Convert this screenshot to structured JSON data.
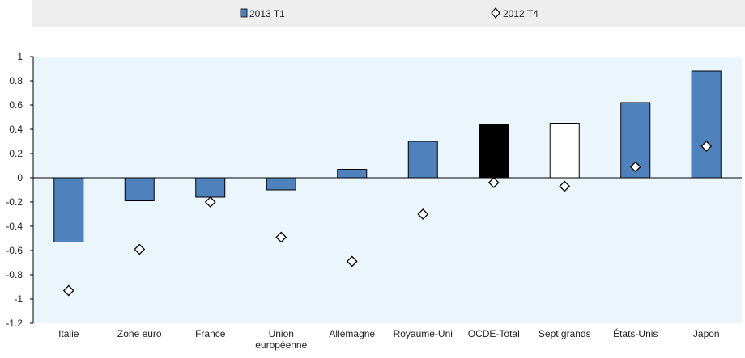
{
  "chart_data": {
    "type": "bar",
    "categories": [
      [
        "Italie"
      ],
      [
        "Zone euro"
      ],
      [
        "France"
      ],
      [
        "Union",
        "européenne"
      ],
      [
        "Allemagne"
      ],
      [
        "Royaume-Uni"
      ],
      [
        "OCDE-Total"
      ],
      [
        "Sept grands"
      ],
      [
        "États-Unis"
      ],
      [
        "Japon"
      ]
    ],
    "series": [
      {
        "name": "2013 T1",
        "kind": "bar",
        "values": [
          -0.53,
          -0.19,
          -0.16,
          -0.1,
          0.07,
          0.3,
          0.44,
          0.45,
          0.62,
          0.88
        ],
        "bar_colors": [
          "#4f81bd",
          "#4f81bd",
          "#4f81bd",
          "#4f81bd",
          "#4f81bd",
          "#4f81bd",
          "#000000",
          "#ffffff",
          "#4f81bd",
          "#4f81bd"
        ]
      },
      {
        "name": "2012 T4",
        "kind": "marker",
        "marker": "diamond",
        "values": [
          -0.93,
          -0.59,
          -0.2,
          -0.49,
          -0.69,
          -0.3,
          -0.04,
          -0.07,
          0.09,
          0.26
        ]
      }
    ],
    "ylim": [
      -1.2,
      1
    ],
    "yticks": [
      "1",
      "0.8",
      "0.6",
      "0.4",
      "0.2",
      "0",
      "-0.2",
      "-0.4",
      "-0.6",
      "-0.8",
      "-1",
      "-1.2"
    ],
    "ytick_values": [
      1,
      0.8,
      0.6,
      0.4,
      0.2,
      0,
      -0.2,
      -0.4,
      -0.6,
      -0.8,
      -1,
      -1.2
    ],
    "legend_position": "top-center",
    "grid": false,
    "colors": {
      "bar": "#4f81bd",
      "bar_stroke": "#000000",
      "plot_background": "#eaf6fb",
      "legend_background": "#eeeeee",
      "marker_fill": "#ffffff",
      "marker_stroke": "#000000"
    }
  }
}
